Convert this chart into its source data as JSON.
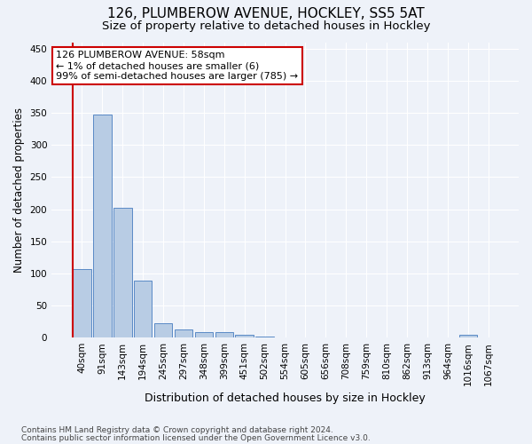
{
  "title": "126, PLUMBEROW AVENUE, HOCKLEY, SS5 5AT",
  "subtitle": "Size of property relative to detached houses in Hockley",
  "xlabel": "Distribution of detached houses by size in Hockley",
  "ylabel": "Number of detached properties",
  "categories": [
    "40sqm",
    "91sqm",
    "143sqm",
    "194sqm",
    "245sqm",
    "297sqm",
    "348sqm",
    "399sqm",
    "451sqm",
    "502sqm",
    "554sqm",
    "605sqm",
    "656sqm",
    "708sqm",
    "759sqm",
    "810sqm",
    "862sqm",
    "913sqm",
    "964sqm",
    "1016sqm",
    "1067sqm"
  ],
  "values": [
    107,
    347,
    202,
    89,
    23,
    13,
    9,
    8,
    5,
    2,
    0,
    0,
    0,
    0,
    0,
    0,
    0,
    0,
    0,
    4,
    0
  ],
  "bar_color": "#b8cce4",
  "bar_edge_color": "#5a8ac6",
  "annotation_line1": "126 PLUMBEROW AVENUE: 58sqm",
  "annotation_line2": "← 1% of detached houses are smaller (6)",
  "annotation_line3": "99% of semi-detached houses are larger (785) →",
  "annotation_box_color": "#ffffff",
  "annotation_border_color": "#cc0000",
  "marker_line_color": "#cc0000",
  "ylim": [
    0,
    460
  ],
  "yticks": [
    0,
    50,
    100,
    150,
    200,
    250,
    300,
    350,
    400,
    450
  ],
  "background_color": "#eef2f9",
  "grid_color": "#ffffff",
  "footnote_line1": "Contains HM Land Registry data © Crown copyright and database right 2024.",
  "footnote_line2": "Contains public sector information licensed under the Open Government Licence v3.0.",
  "title_fontsize": 11,
  "subtitle_fontsize": 9.5,
  "ylabel_fontsize": 8.5,
  "xlabel_fontsize": 9,
  "tick_fontsize": 7.5,
  "annotation_fontsize": 8,
  "footnote_fontsize": 6.5
}
